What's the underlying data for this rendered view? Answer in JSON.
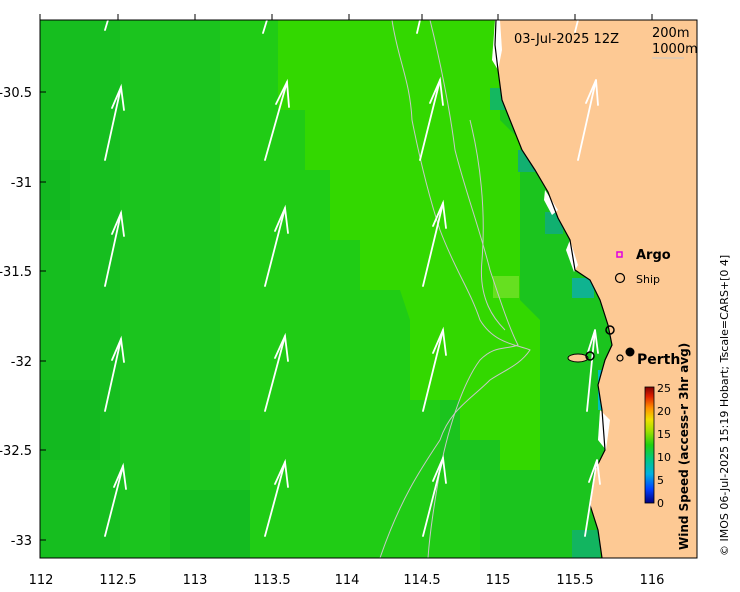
{
  "map": {
    "date_label": "03-Jul-2025 12Z",
    "contour_200": "200m",
    "contour_1000": "1000m",
    "x_axis": {
      "ticks": [
        "112",
        "112.5",
        "113",
        "113.5",
        "114",
        "114.5",
        "115",
        "115.5",
        "116"
      ]
    },
    "y_axis": {
      "ticks": [
        "-30.5",
        "-31",
        "-31.5",
        "-32",
        "-32.5",
        "-33"
      ]
    },
    "legend": {
      "argo": "Argo",
      "ship": "Ship"
    },
    "place_label": "Perth",
    "colorbar": {
      "ticks": [
        "25",
        "20",
        "15",
        "10",
        "5",
        "0"
      ],
      "title": "Wind Speed (access-r 3hr avg)"
    },
    "credit": "© IMOS 06-Jul-2025 15:19 Hobart; Tscale=CARS+[0 4]"
  },
  "colors": {
    "land": "#FDC994",
    "ocean_base": "#19C41C",
    "ocean_light": "#33DB00",
    "arrow": "#FFFFFF",
    "argo": "#E000E0"
  }
}
